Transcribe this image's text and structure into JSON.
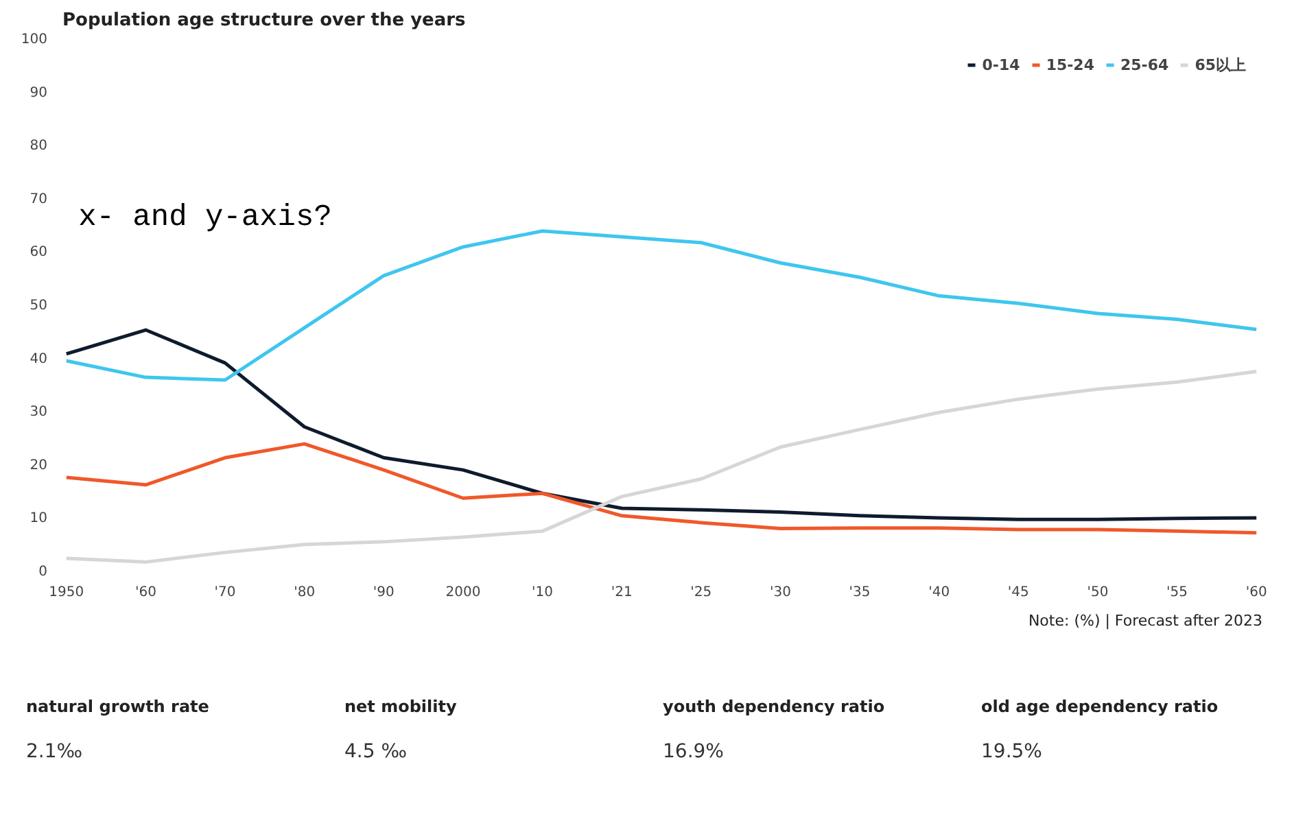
{
  "chart_data": {
    "type": "line",
    "title": "Population age structure over the years",
    "categories": [
      "1950",
      "'60",
      "'70",
      "'80",
      "'90",
      "2000",
      "'10",
      "'21",
      "'25",
      "'30",
      "'35",
      "'40",
      "'45",
      "'50",
      "'55",
      "'60"
    ],
    "series": [
      {
        "name": "0-14",
        "color": "#0f1b2d",
        "values": [
          40.6,
          45.1,
          38.9,
          26.9,
          21.1,
          18.8,
          14.4,
          11.6,
          11.3,
          10.9,
          10.2,
          9.8,
          9.5,
          9.5,
          9.7,
          9.8
        ]
      },
      {
        "name": "15-24",
        "color": "#f0582a",
        "values": [
          17.4,
          16.0,
          21.1,
          23.7,
          18.8,
          13.5,
          14.4,
          10.2,
          8.9,
          7.8,
          7.9,
          7.9,
          7.6,
          7.6,
          7.3,
          7.0
        ]
      },
      {
        "name": "25-64",
        "color": "#3fc6ee",
        "values": [
          39.3,
          36.2,
          35.7,
          45.5,
          55.3,
          60.7,
          63.7,
          62.6,
          61.5,
          57.7,
          55.0,
          51.5,
          50.1,
          48.2,
          47.1,
          45.2
        ]
      },
      {
        "name": "65以上",
        "color": "#d6d6d6",
        "values": [
          2.2,
          1.5,
          3.3,
          4.8,
          5.3,
          6.2,
          7.3,
          13.8,
          17.1,
          23.1,
          26.4,
          29.6,
          32.1,
          34.0,
          35.3,
          37.3
        ]
      }
    ],
    "ylim": [
      0,
      100
    ],
    "yticks": [
      0,
      10,
      20,
      30,
      40,
      50,
      60,
      70,
      80,
      90,
      100
    ],
    "grid": false,
    "legend": "top right",
    "line_style": "solid",
    "marker": "none",
    "annotations": [
      "x- and y-axis?",
      "Note: (%) | Forecast after 2023",
      "natural growth rate",
      "2.1‰",
      "net mobility",
      "4.5 ‰",
      "youth dependency ratio",
      "16.9%",
      "old age dependency ratio",
      "19.5%"
    ]
  }
}
